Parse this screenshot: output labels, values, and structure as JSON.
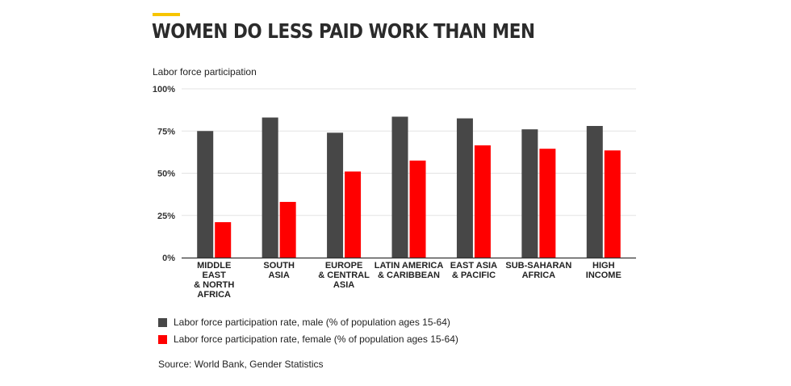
{
  "header": {
    "title": "WOMEN DO LESS PAID WORK THAN MEN",
    "subtitle": "Labor force participation",
    "accent_color": "#f7c500"
  },
  "chart_data": {
    "type": "bar",
    "categories": [
      [
        "MIDDLE",
        "EAST",
        "& NORTH",
        "AFRICA"
      ],
      [
        "SOUTH",
        "ASIA"
      ],
      [
        "EUROPE",
        "& CENTRAL",
        "ASIA"
      ],
      [
        "LATIN AMERICA",
        "& CARIBBEAN"
      ],
      [
        "EAST ASIA",
        "& PACIFIC"
      ],
      [
        "SUB-SAHARAN",
        "AFRICA"
      ],
      [
        "HIGH",
        "INCOME"
      ]
    ],
    "series": [
      {
        "name": "Labor force participation rate, male (% of population ages 15-64)",
        "color": "#474747",
        "values": [
          75,
          83,
          74,
          83.5,
          82.5,
          76,
          78
        ]
      },
      {
        "name": "Labor force participation rate, female (% of population ages 15-64)",
        "color": "#ff0000",
        "values": [
          21,
          33,
          51,
          57.5,
          66.5,
          64.5,
          63.5
        ]
      }
    ],
    "yticks": [
      "0%",
      "25%",
      "50%",
      "75%",
      "100%"
    ],
    "ytick_values": [
      0,
      25,
      50,
      75,
      100
    ],
    "ylim": [
      0,
      100
    ],
    "grid": true,
    "legend_position": "bottom-left"
  },
  "footer": {
    "source": "Source: World Bank, Gender Statistics"
  }
}
